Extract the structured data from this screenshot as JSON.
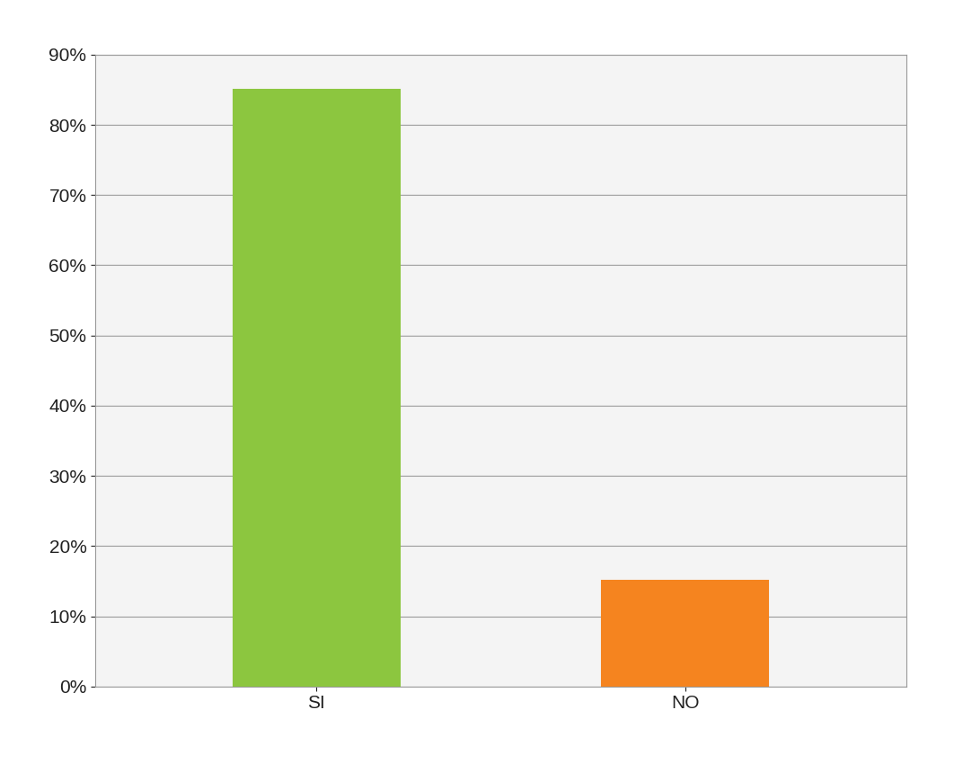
{
  "chart_data": {
    "type": "bar",
    "categories": [
      "SI",
      "NO"
    ],
    "values": [
      85,
      15
    ],
    "colors": [
      "#8cc63f",
      "#f5841f"
    ],
    "ylim": [
      0,
      90
    ],
    "yticks": [
      {
        "value": 0,
        "label": "0%"
      },
      {
        "value": 10,
        "label": "10%"
      },
      {
        "value": 20,
        "label": "20%"
      },
      {
        "value": 30,
        "label": "30%"
      },
      {
        "value": 40,
        "label": "40%"
      },
      {
        "value": 50,
        "label": "50%"
      },
      {
        "value": 60,
        "label": "60%"
      },
      {
        "value": 70,
        "label": "70%"
      },
      {
        "value": 80,
        "label": "80%"
      },
      {
        "value": 90,
        "label": "90%"
      }
    ],
    "grid": true
  }
}
